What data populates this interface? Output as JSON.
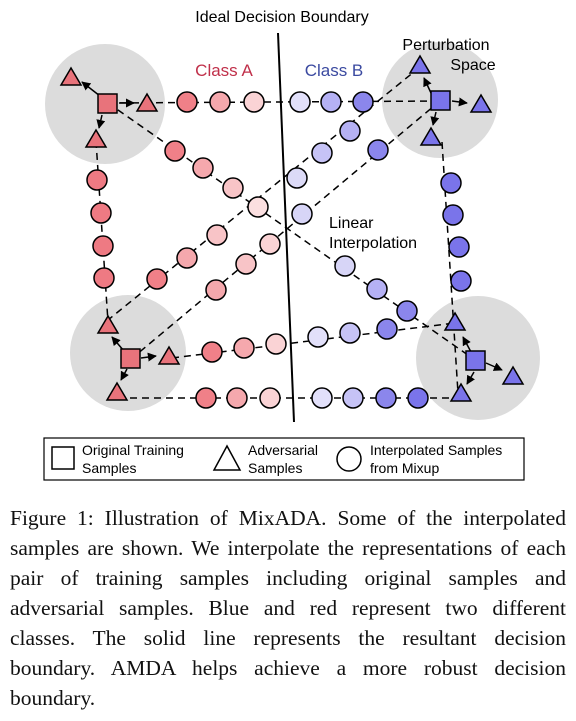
{
  "figure": {
    "boundary_label": "Ideal Decision Boundary",
    "class_a_label": "Class A",
    "class_b_label": "Class B",
    "perturbation_label_line1": "Perturbation",
    "perturbation_label_line2": "Space",
    "interp_label_line1": "Linear",
    "interp_label_line2": "Interpolation",
    "legend": {
      "square_line1": "Original Training",
      "square_line2": "Samples",
      "triangle_line1": "Adversarial",
      "triangle_line2": "Samples",
      "circle_line1": "Interpolated Samples",
      "circle_line2": "from Mixup"
    },
    "colors": {
      "class_a": "#e8737b",
      "class_a_light": "#f8d4d6",
      "class_b": "#7a74ea",
      "class_b_light": "#dcdaf7",
      "class_a_text": "#c0304a",
      "class_b_text": "#3b4aa0",
      "perturbation_space": "#dcdcdc"
    }
  },
  "caption": "Figure 1: Illustration of MixADA. Some of the interpolated samples are shown. We interpolate the representations of each pair of training samples including original samples and adversarial samples. Blue and red represent two different classes. The solid line represents the resultant decision boundary. AMDA helps achieve a more robust decision boundary."
}
